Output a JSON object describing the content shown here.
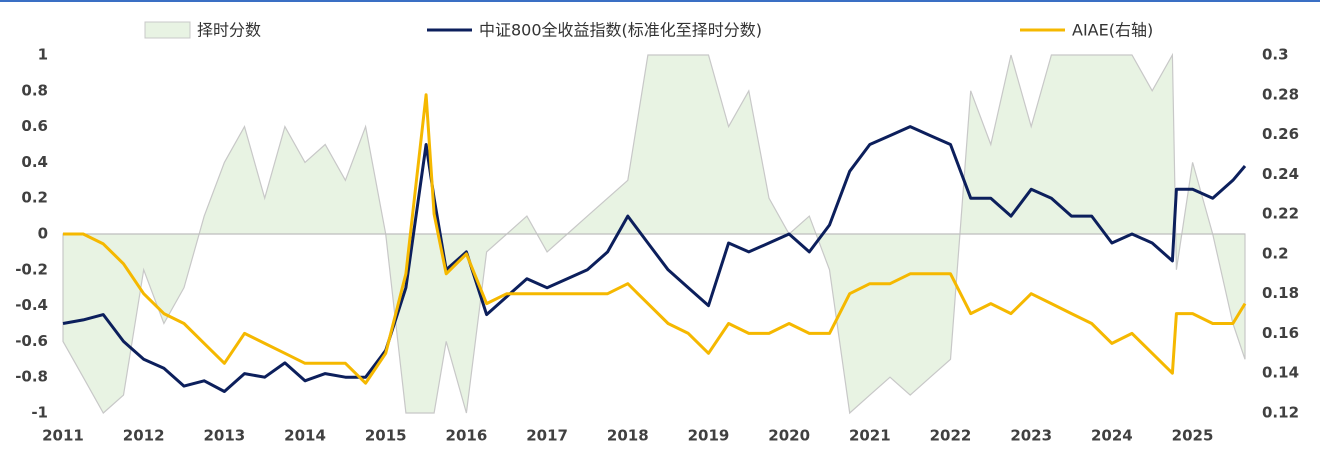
{
  "chart_data": {
    "type": "line",
    "x": [
      2011.0,
      2011.25,
      2011.5,
      2011.75,
      2012.0,
      2012.25,
      2012.5,
      2012.75,
      2013.0,
      2013.25,
      2013.5,
      2013.75,
      2014.0,
      2014.25,
      2014.5,
      2014.75,
      2015.0,
      2015.25,
      2015.5,
      2015.6,
      2015.75,
      2016.0,
      2016.25,
      2016.5,
      2016.75,
      2017.0,
      2017.25,
      2017.5,
      2017.75,
      2018.0,
      2018.25,
      2018.5,
      2018.75,
      2019.0,
      2019.25,
      2019.5,
      2019.75,
      2020.0,
      2020.25,
      2020.5,
      2020.75,
      2021.0,
      2021.25,
      2021.5,
      2021.75,
      2022.0,
      2022.25,
      2022.5,
      2022.75,
      2023.0,
      2023.25,
      2023.5,
      2023.75,
      2024.0,
      2024.25,
      2024.5,
      2024.75,
      2024.8,
      2025.0,
      2025.25,
      2025.5,
      2025.65
    ],
    "series": [
      {
        "name": "择时分数",
        "kind": "area",
        "color": "#e8f3e3",
        "values": [
          -0.6,
          -0.8,
          -1,
          -0.9,
          -0.2,
          -0.5,
          -0.3,
          0.1,
          0.4,
          0.6,
          0.2,
          0.6,
          0.4,
          0.5,
          0.3,
          0.6,
          0,
          -1,
          -1,
          -1,
          -0.6,
          -1,
          -0.1,
          0,
          0.1,
          -0.1,
          0,
          0.1,
          0.2,
          0.3,
          1,
          1,
          1,
          1,
          0.6,
          0.8,
          0.2,
          0,
          0.1,
          -0.2,
          -1,
          -0.9,
          -0.8,
          -0.9,
          -0.8,
          -0.7,
          0.8,
          0.5,
          1,
          0.6,
          1,
          1,
          1,
          1,
          1,
          0.8,
          1,
          -0.2,
          0.4,
          0,
          -0.5,
          -0.7
        ]
      },
      {
        "name": "中证800全收益指数(标准化至择时分数)",
        "color": "#0c1f5c",
        "values": [
          -0.5,
          -0.48,
          -0.45,
          -0.6,
          -0.7,
          -0.75,
          -0.85,
          -0.82,
          -0.88,
          -0.78,
          -0.8,
          -0.72,
          -0.82,
          -0.78,
          -0.8,
          -0.8,
          -0.65,
          -0.3,
          0.5,
          0.2,
          -0.2,
          -0.1,
          -0.45,
          -0.35,
          -0.25,
          -0.3,
          -0.25,
          -0.2,
          -0.1,
          0.1,
          -0.05,
          -0.2,
          -0.3,
          -0.4,
          -0.05,
          -0.1,
          -0.05,
          0,
          -0.1,
          0.05,
          0.35,
          0.5,
          0.55,
          0.6,
          0.55,
          0.5,
          0.2,
          0.2,
          0.1,
          0.25,
          0.2,
          0.1,
          0.1,
          -0.05,
          0,
          -0.05,
          -0.15,
          0.25,
          0.25,
          0.2,
          0.3,
          0.38
        ]
      },
      {
        "name": "AIAE(右轴)",
        "axis": "y2",
        "color": "#f5b800",
        "values": [
          0.21,
          0.21,
          0.205,
          0.195,
          0.18,
          0.17,
          0.165,
          0.155,
          0.145,
          0.16,
          0.155,
          0.15,
          0.145,
          0.145,
          0.145,
          0.135,
          0.15,
          0.19,
          0.28,
          0.22,
          0.19,
          0.2,
          0.175,
          0.18,
          0.18,
          0.18,
          0.18,
          0.18,
          0.18,
          0.185,
          0.175,
          0.165,
          0.16,
          0.15,
          0.165,
          0.16,
          0.16,
          0.165,
          0.16,
          0.16,
          0.18,
          0.185,
          0.185,
          0.19,
          0.19,
          0.19,
          0.17,
          0.175,
          0.17,
          0.18,
          0.175,
          0.17,
          0.165,
          0.155,
          0.16,
          0.15,
          0.14,
          0.17,
          0.17,
          0.165,
          0.165,
          0.175
        ]
      }
    ],
    "xlim": [
      2011,
      2025.65
    ],
    "xticks": [
      2011,
      2012,
      2013,
      2014,
      2015,
      2016,
      2017,
      2018,
      2019,
      2020,
      2021,
      2022,
      2023,
      2024,
      2025
    ],
    "ylim": [
      -1,
      1
    ],
    "yticks": [
      -1,
      -0.8,
      -0.6,
      -0.4,
      -0.2,
      0,
      0.2,
      0.4,
      0.6,
      0.8,
      1
    ],
    "y2lim": [
      0.12,
      0.3
    ],
    "y2ticks": [
      0.12,
      0.14,
      0.16,
      0.18,
      0.2,
      0.22,
      0.24,
      0.26,
      0.28,
      0.3
    ]
  }
}
